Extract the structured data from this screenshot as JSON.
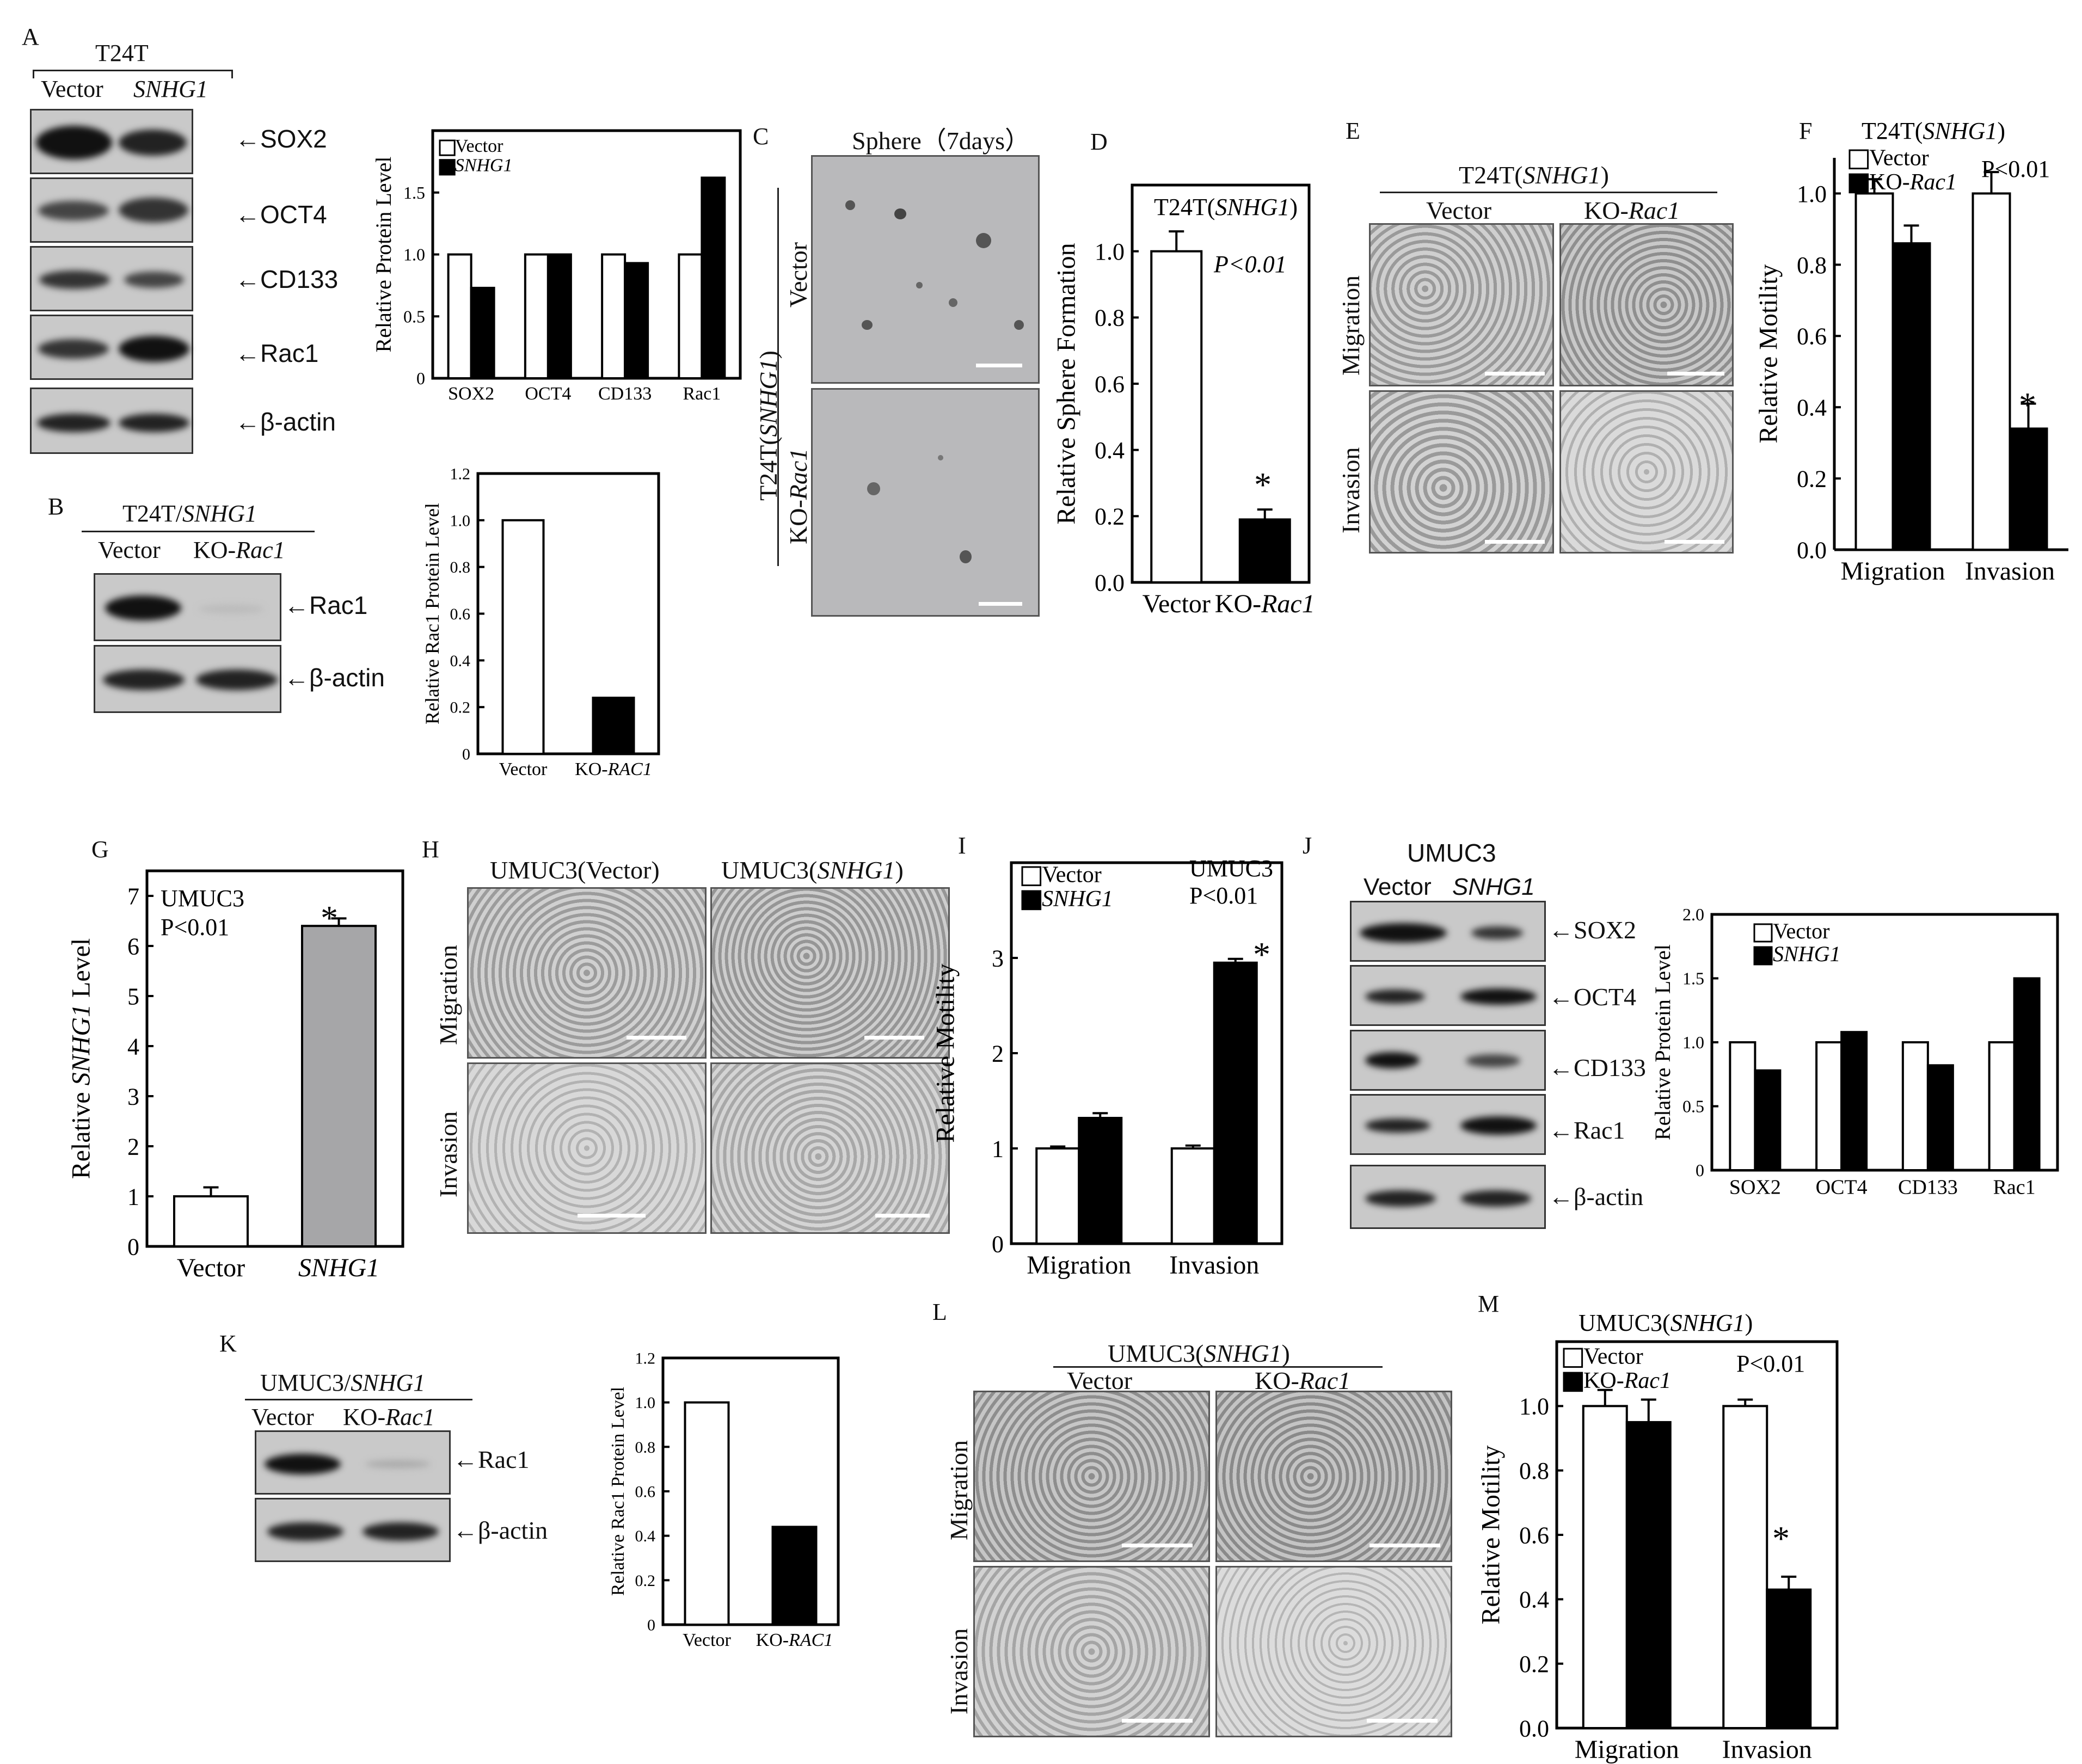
{
  "panels": {
    "A": "A",
    "B": "B",
    "C": "C",
    "D": "D",
    "E": "E",
    "F": "F",
    "G": "G",
    "H": "H",
    "I": "I",
    "J": "J",
    "K": "K",
    "L": "L",
    "M": "M"
  },
  "A": {
    "cell": "T24T",
    "lane1": "Vector",
    "lane2": "SNHG1",
    "bands": [
      "SOX2",
      "OCT4",
      "CD133",
      "Rac1",
      "β-actin"
    ]
  },
  "B": {
    "cell": "T24T/",
    "cell_gene": "SNHG1",
    "lane1": "Vector",
    "lane2_prefix": "KO-",
    "lane2_gene": "Rac1",
    "bands": [
      "Rac1",
      "β-actin"
    ]
  },
  "C": {
    "title": "Sphere（7days）",
    "group": "T24T(",
    "group_gene": "SNHG1",
    "group_close": ")",
    "row1": "Vector",
    "row2_prefix": "KO-",
    "row2_gene": "Rac1"
  },
  "E": {
    "group": "T24T(",
    "group_gene": "SNHG1",
    "group_close": ")",
    "col1": "Vector",
    "col2_prefix": "KO-",
    "col2_gene": "Rac1",
    "row1": "Migration",
    "row2": "Invasion"
  },
  "H": {
    "col1": "UMUC3(Vector)",
    "col2_prefix": "UMUC3(",
    "col2_gene": "SNHG1",
    "col2_close": ")",
    "row1": "Migration",
    "row2": "Invasion"
  },
  "J": {
    "cell": "UMUC3",
    "lane1": "Vector",
    "lane2": "SNHG1",
    "bands": [
      "SOX2",
      "OCT4",
      "CD133",
      "Rac1",
      "β-actin"
    ]
  },
  "K": {
    "cell": "UMUC3/",
    "cell_gene": "SNHG1",
    "lane1": "Vector",
    "lane2_prefix": "KO-",
    "lane2_gene": "Rac1",
    "bands": [
      "Rac1",
      "β-actin"
    ]
  },
  "L": {
    "group": "UMUC3(",
    "group_gene": "SNHG1",
    "group_close": ")",
    "col1": "Vector",
    "col2_prefix": "KO-",
    "col2_gene": "Rac1",
    "row1": "Migration",
    "row2": "Invasion"
  },
  "colors": {
    "bar_black": "#000000",
    "bar_white": "#ffffff",
    "bar_gray": "#a6a6a8"
  },
  "chart_data": [
    {
      "id": "A",
      "type": "bar",
      "ylabel": "Relative Protein Level",
      "categories": [
        "SOX2",
        "OCT4",
        "CD133",
        "Rac1"
      ],
      "series": [
        {
          "name": "Vector",
          "values": [
            1.0,
            1.0,
            1.0,
            1.0
          ]
        },
        {
          "name": "SNHG1",
          "values": [
            0.73,
            1.0,
            0.93,
            1.62
          ]
        }
      ],
      "ylim": [
        0,
        2.0
      ],
      "yticks": [
        "0",
        "0.5",
        "1.0",
        "1.5"
      ]
    },
    {
      "id": "B",
      "type": "bar",
      "ylabel": "Relative Rac1 Protein Level",
      "categories": [
        "Vector",
        "KO-RAC1"
      ],
      "values": [
        1.0,
        0.24
      ],
      "ylim": [
        0,
        1.2
      ],
      "yticks": [
        "0",
        "0.2",
        "0.4",
        "0.6",
        "0.8",
        "1.0",
        "1.2"
      ]
    },
    {
      "id": "D",
      "type": "bar",
      "title": "T24T(SNHG1)",
      "annotation": "P<0.01",
      "ylabel": "Relative Sphere Formation",
      "categories": [
        "Vector",
        "KO-Rac1"
      ],
      "values": [
        1.0,
        0.19
      ],
      "errors": [
        0.06,
        0.03
      ],
      "ylim": [
        0,
        1.2
      ],
      "yticks": [
        "0.0",
        "0.2",
        "0.4",
        "0.6",
        "0.8",
        "1.0"
      ]
    },
    {
      "id": "F",
      "type": "bar",
      "title": "T24T(SNHG1)",
      "annotation": "P<0.01",
      "ylabel": "Relative Motility",
      "categories": [
        "Migration",
        "Invasion"
      ],
      "series": [
        {
          "name": "Vector",
          "values": [
            1.0,
            1.0
          ],
          "errors": [
            0.04,
            0.06
          ]
        },
        {
          "name": "KO-Rac1",
          "values": [
            0.86,
            0.34
          ],
          "errors": [
            0.05,
            0.07
          ]
        }
      ],
      "ylim": [
        0,
        1.1
      ],
      "yticks": [
        "0.0",
        "0.2",
        "0.4",
        "0.6",
        "0.8",
        "1.0"
      ]
    },
    {
      "id": "G",
      "type": "bar",
      "title": "UMUC3",
      "annotation": "P<0.01",
      "ylabel": "Relative SNHG1 Level",
      "categories": [
        "Vector",
        "SNHG1"
      ],
      "values": [
        1.0,
        6.4
      ],
      "errors": [
        0.18,
        0.15
      ],
      "ylim": [
        0,
        7.5
      ],
      "yticks": [
        "0",
        "1",
        "2",
        "3",
        "4",
        "5",
        "6",
        "7"
      ]
    },
    {
      "id": "I",
      "type": "bar",
      "title": "UMUC3",
      "annotation": "P<0.01",
      "ylabel": "Relative Motility",
      "categories": [
        "Migration",
        "Invasion"
      ],
      "series": [
        {
          "name": "Vector",
          "values": [
            1.0,
            1.0
          ],
          "errors": [
            0.02,
            0.03
          ]
        },
        {
          "name": "SNHG1",
          "values": [
            1.32,
            2.95
          ],
          "errors": [
            0.05,
            0.04
          ]
        }
      ],
      "ylim": [
        0,
        4.0
      ],
      "yticks": [
        "0",
        "1",
        "2",
        "3"
      ]
    },
    {
      "id": "J",
      "type": "bar",
      "ylabel": "Relative Protein Level",
      "categories": [
        "SOX2",
        "OCT4",
        "CD133",
        "Rac1"
      ],
      "series": [
        {
          "name": "Vector",
          "values": [
            1.0,
            1.0,
            1.0,
            1.0
          ]
        },
        {
          "name": "SNHG1",
          "values": [
            0.78,
            1.08,
            0.82,
            1.5
          ]
        }
      ],
      "ylim": [
        0,
        2.0
      ],
      "yticks": [
        "0",
        "0.5",
        "1.0",
        "1.5",
        "2.0"
      ]
    },
    {
      "id": "K",
      "type": "bar",
      "ylabel": "Relative Rac1 Protein Level",
      "categories": [
        "Vector",
        "KO-RAC1"
      ],
      "values": [
        1.0,
        0.44
      ],
      "ylim": [
        0,
        1.2
      ],
      "yticks": [
        "0",
        "0.2",
        "0.4",
        "0.6",
        "0.8",
        "1.0",
        "1.2"
      ]
    },
    {
      "id": "M",
      "type": "bar",
      "title": "UMUC3(SNHG1)",
      "annotation": "P<0.01",
      "ylabel": "Relative Motility",
      "categories": [
        "Migration",
        "Invasion"
      ],
      "series": [
        {
          "name": "Vector",
          "values": [
            1.0,
            1.0
          ],
          "errors": [
            0.05,
            0.02
          ]
        },
        {
          "name": "KO-Rac1",
          "values": [
            0.95,
            0.43
          ],
          "errors": [
            0.07,
            0.04
          ]
        }
      ],
      "ylim": [
        0,
        1.2
      ],
      "yticks": [
        "0.0",
        "0.2",
        "0.4",
        "0.6",
        "0.8",
        "1.0"
      ]
    }
  ]
}
